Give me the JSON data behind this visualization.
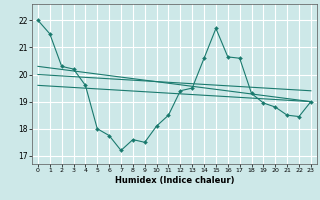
{
  "background_color": "#cde8e8",
  "grid_color": "#ffffff",
  "line_color": "#1a7a6e",
  "xlabel": "Humidex (Indice chaleur)",
  "xlim": [
    -0.5,
    23.5
  ],
  "ylim": [
    16.7,
    22.6
  ],
  "yticks": [
    17,
    18,
    19,
    20,
    21,
    22
  ],
  "xticks": [
    0,
    1,
    2,
    3,
    4,
    5,
    6,
    7,
    8,
    9,
    10,
    11,
    12,
    13,
    14,
    15,
    16,
    17,
    18,
    19,
    20,
    21,
    22,
    23
  ],
  "series": [
    {
      "x": [
        0,
        1,
        2,
        3,
        4,
        5,
        6,
        7,
        8,
        9,
        10,
        11,
        12,
        13,
        14,
        15,
        16,
        17,
        18,
        19,
        20,
        21,
        22,
        23
      ],
      "y": [
        22.0,
        21.5,
        20.3,
        20.2,
        19.6,
        18.0,
        17.75,
        17.2,
        17.6,
        17.5,
        18.1,
        18.5,
        19.4,
        19.5,
        20.6,
        21.7,
        20.65,
        20.6,
        19.3,
        18.95,
        18.8,
        18.5,
        18.45,
        19.0
      ]
    },
    {
      "x": [
        0,
        23
      ],
      "y": [
        20.3,
        19.0
      ]
    },
    {
      "x": [
        0,
        23
      ],
      "y": [
        20.0,
        19.4
      ]
    },
    {
      "x": [
        0,
        23
      ],
      "y": [
        19.6,
        19.0
      ]
    }
  ]
}
